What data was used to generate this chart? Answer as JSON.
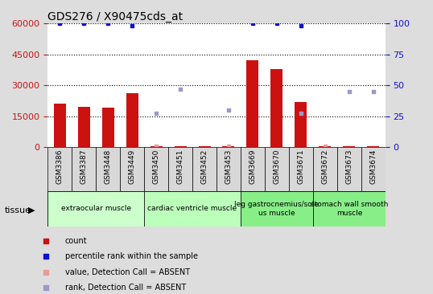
{
  "title": "GDS276 / X90475cds_at",
  "samples": [
    "GSM3386",
    "GSM3387",
    "GSM3448",
    "GSM3449",
    "GSM3450",
    "GSM3451",
    "GSM3452",
    "GSM3453",
    "GSM3669",
    "GSM3670",
    "GSM3671",
    "GSM3672",
    "GSM3673",
    "GSM3674"
  ],
  "bar_values": [
    21000,
    19500,
    19000,
    26000,
    300,
    300,
    300,
    300,
    42000,
    38000,
    22000,
    300,
    300,
    300
  ],
  "bar_color": "#cc1111",
  "blue_dot_values": [
    100,
    100,
    100,
    98,
    null,
    null,
    null,
    null,
    100,
    100,
    98,
    null,
    null,
    null
  ],
  "blue_dot_color": "#1111cc",
  "absent_value_scatter": [
    null,
    null,
    null,
    null,
    500,
    null,
    null,
    500,
    null,
    null,
    null,
    500,
    null,
    null
  ],
  "absent_rank_scatter": [
    null,
    null,
    null,
    null,
    27,
    47,
    null,
    30,
    null,
    null,
    27,
    null,
    45,
    45
  ],
  "absent_value_color": "#ee9999",
  "absent_rank_color": "#9999cc",
  "ylim_left": [
    0,
    60000
  ],
  "ylim_right": [
    0,
    100
  ],
  "yticks_left": [
    0,
    15000,
    30000,
    45000,
    60000
  ],
  "yticks_right": [
    0,
    25,
    50,
    75,
    100
  ],
  "tissue_groups": [
    {
      "label": "extraocular muscle",
      "start": 0,
      "end": 4,
      "color": "#ccffcc"
    },
    {
      "label": "cardiac ventricle muscle",
      "start": 4,
      "end": 8,
      "color": "#bbffbb"
    },
    {
      "label": "leg gastrocnemius/sole\nus muscle",
      "start": 8,
      "end": 11,
      "color": "#88ee88"
    },
    {
      "label": "stomach wall smooth\nmuscle",
      "start": 11,
      "end": 14,
      "color": "#88ee88"
    }
  ],
  "tissue_label": "tissue",
  "bg_color": "#cccccc",
  "plot_bg": "#ffffff",
  "legend_items": [
    {
      "label": "count",
      "color": "#cc1111",
      "marker": "s"
    },
    {
      "label": "percentile rank within the sample",
      "color": "#1111cc",
      "marker": "s"
    },
    {
      "label": "value, Detection Call = ABSENT",
      "color": "#ee9999",
      "marker": "s"
    },
    {
      "label": "rank, Detection Call = ABSENT",
      "color": "#9999cc",
      "marker": "s"
    }
  ]
}
